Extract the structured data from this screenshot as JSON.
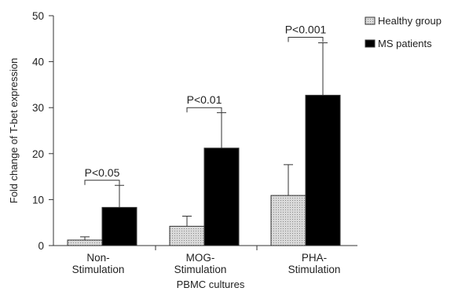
{
  "chart_data": {
    "type": "bar",
    "xlabel": "PBMC cultures",
    "ylabel": "Fold change of T-bet expression",
    "ylim": [
      0,
      50
    ],
    "yticks": [
      0,
      10,
      20,
      30,
      40,
      50
    ],
    "categories": [
      {
        "line1": "Non-",
        "line2": "Stimulation"
      },
      {
        "line1": "MOG-",
        "line2": "Stimulation"
      },
      {
        "line1": "PHA-",
        "line2": "Stimulation"
      }
    ],
    "series": [
      {
        "name": "Healthy group",
        "values": [
          1.2,
          4.2,
          10.9
        ],
        "errors": [
          0.7,
          2.2,
          6.7
        ],
        "pattern": "dotted",
        "color": "#d9d9d9"
      },
      {
        "name": "MS patients",
        "values": [
          8.3,
          21.2,
          32.7
        ],
        "errors": [
          4.8,
          7.7,
          11.4
        ],
        "pattern": "solid",
        "color": "#000000"
      }
    ],
    "annotations": [
      {
        "category": 0,
        "text": "P<0.05",
        "bracket_y": 14.2
      },
      {
        "category": 1,
        "text": "P<0.01",
        "bracket_y": 30.0
      },
      {
        "category": 2,
        "text": "P<0.001",
        "bracket_y": 45.3
      }
    ],
    "legend_position": "top-right",
    "grid": false
  }
}
